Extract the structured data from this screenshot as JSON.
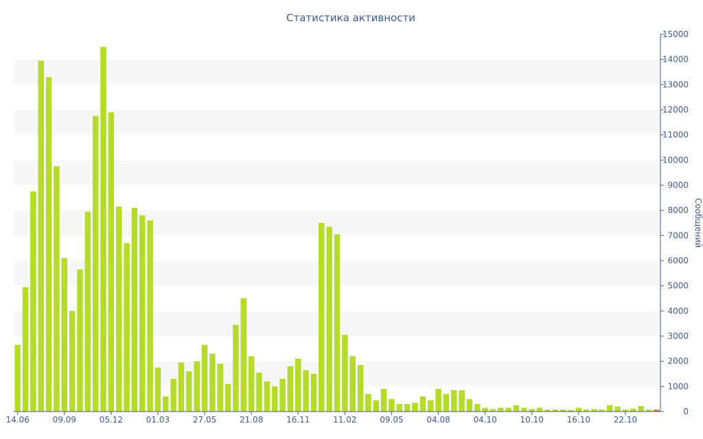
{
  "chart_data": {
    "type": "bar",
    "title": "Статистика активности",
    "ylabel": "Сообщений",
    "xlabel": "",
    "ylim": [
      0,
      15000
    ],
    "yticks": [
      0,
      1000,
      2000,
      3000,
      4000,
      5000,
      6000,
      7000,
      8000,
      9000,
      10000,
      11000,
      12000,
      13000,
      14000,
      15000
    ],
    "x_tick_labels": [
      {
        "label": "14.06",
        "index": 0
      },
      {
        "label": "09.09",
        "index": 6
      },
      {
        "label": "05.12",
        "index": 12
      },
      {
        "label": "01.03",
        "index": 18
      },
      {
        "label": "27.05",
        "index": 24
      },
      {
        "label": "21.08",
        "index": 30
      },
      {
        "label": "16.11",
        "index": 36
      },
      {
        "label": "11.02",
        "index": 42
      },
      {
        "label": "09.05",
        "index": 48
      },
      {
        "label": "04.08",
        "index": 54
      },
      {
        "label": "04.10",
        "index": 60
      },
      {
        "label": "10.10",
        "index": 66
      },
      {
        "label": "16.10",
        "index": 72
      },
      {
        "label": "22.10",
        "index": 78
      }
    ],
    "grid": true,
    "legend": "none",
    "bar_color": "#b5dc2a",
    "last_bar_color": "#d2691e",
    "values": [
      2650,
      4950,
      8750,
      13950,
      13300,
      9750,
      6100,
      4000,
      5650,
      7950,
      11750,
      14500,
      11900,
      8150,
      6700,
      8100,
      7800,
      7600,
      1750,
      600,
      1300,
      1950,
      1600,
      2000,
      2650,
      2300,
      1900,
      1100,
      3450,
      4500,
      2200,
      1550,
      1200,
      1000,
      1300,
      1800,
      2100,
      1650,
      1500,
      7500,
      7350,
      7050,
      3050,
      2200,
      1850,
      700,
      450,
      900,
      500,
      300,
      300,
      350,
      600,
      450,
      900,
      700,
      850,
      850,
      500,
      300,
      150,
      100,
      150,
      150,
      250,
      150,
      100,
      150,
      80,
      80,
      80,
      60,
      150,
      80,
      100,
      80,
      250,
      200,
      80,
      120,
      220,
      80,
      70
    ]
  }
}
